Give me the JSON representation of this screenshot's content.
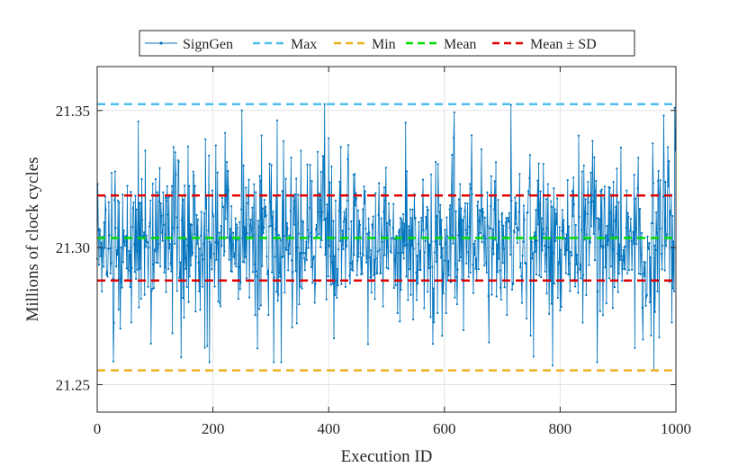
{
  "chart_data": {
    "type": "line",
    "title": "",
    "xlabel": "Execution ID",
    "ylabel": "Millions of clock cycles",
    "xlim": [
      0,
      1000
    ],
    "ylim": [
      21.24,
      21.366
    ],
    "xticks": [
      0,
      200,
      400,
      600,
      800,
      1000
    ],
    "xtick_labels": [
      "0",
      "200",
      "400",
      "600",
      "800",
      "1000"
    ],
    "yticks": [
      21.25,
      21.3,
      21.35
    ],
    "ytick_labels": [
      "21.25",
      "21.30",
      "21.35"
    ],
    "grid": true,
    "legend_position": "top",
    "series": [
      {
        "name": "SignGen",
        "color": "#0072BD",
        "style": "solid-with-dots",
        "n_points": 1000,
        "x_start": 0,
        "x_step": 1,
        "mean": 21.3035,
        "sd": 0.0155,
        "min": 21.2552,
        "max": 21.3523,
        "notable_points": [
          {
            "x": 28,
            "y": 21.2585
          },
          {
            "x": 145,
            "y": 21.26
          },
          {
            "x": 250,
            "y": 21.35
          },
          {
            "x": 393,
            "y": 21.3523
          },
          {
            "x": 715,
            "y": 21.352
          },
          {
            "x": 787,
            "y": 21.257
          },
          {
            "x": 962,
            "y": 21.2552
          },
          {
            "x": 998,
            "y": 21.351
          }
        ]
      }
    ],
    "reference_lines": [
      {
        "name": "Max",
        "y": 21.3523,
        "color": "#4DBEEE",
        "style": "dashed"
      },
      {
        "name": "Min",
        "y": 21.2552,
        "color": "#EDB120",
        "style": "dashed"
      },
      {
        "name": "Mean",
        "y": 21.3035,
        "color": "#00DD00",
        "style": "dashed"
      },
      {
        "name": "Mean ± SD",
        "y": 21.319,
        "color": "#E00000",
        "style": "dashed"
      },
      {
        "name": "",
        "y": 21.288,
        "color": "#E00000",
        "style": "dashed"
      }
    ],
    "legend": [
      "SignGen",
      "Max",
      "Min",
      "Mean",
      "Mean ± SD"
    ]
  }
}
